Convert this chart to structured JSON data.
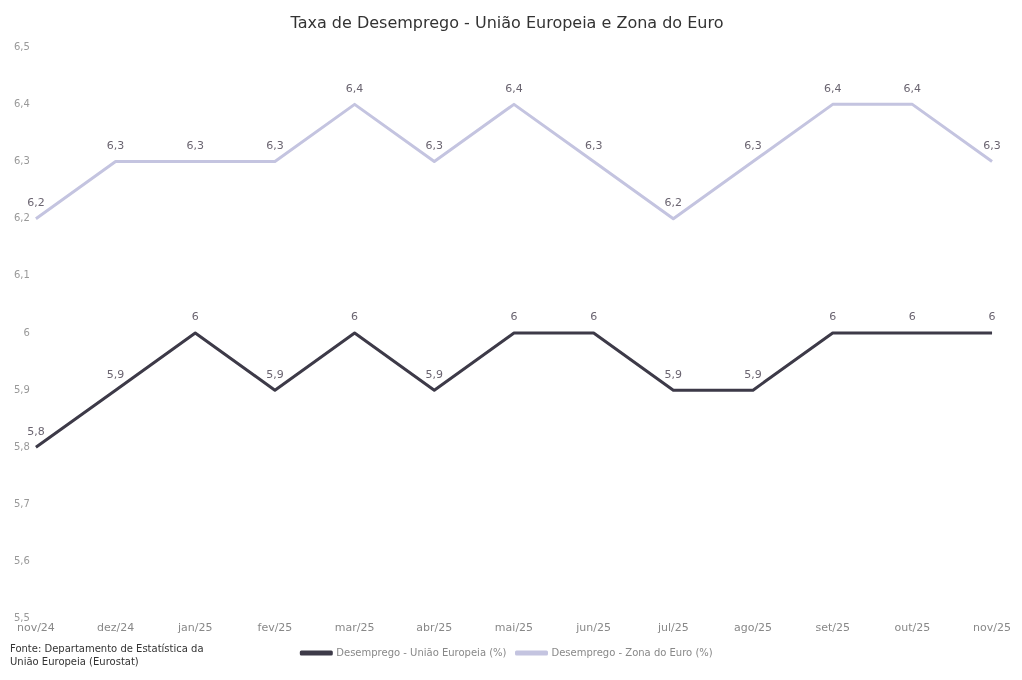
{
  "chart_data": {
    "type": "line",
    "title": "Taxa de Desemprego - União Europeia e Zona do Euro",
    "categories": [
      "nov/24",
      "dez/24",
      "jan/25",
      "fev/25",
      "mar/25",
      "abr/25",
      "mai/25",
      "jun/25",
      "jul/25",
      "ago/25",
      "set/25",
      "out/25",
      "nov/25"
    ],
    "series": [
      {
        "name": "Desemprego - União Europeia (%)",
        "color": "#3d3a48",
        "values": [
          5.8,
          5.9,
          6,
          5.9,
          6,
          5.9,
          6,
          6,
          5.9,
          5.9,
          6,
          6,
          6
        ],
        "value_labels": [
          "5,8",
          "5,9",
          "6",
          "5,9",
          "6",
          "5,9",
          "6",
          "6",
          "5,9",
          "5,9",
          "6",
          "6",
          "6"
        ]
      },
      {
        "name": "Desemprego - Zona do Euro (%)",
        "color": "#c4c4e0",
        "values": [
          6.2,
          6.3,
          6.3,
          6.3,
          6.4,
          6.3,
          6.4,
          6.3,
          6.2,
          6.3,
          6.4,
          6.4,
          6.3
        ],
        "value_labels": [
          "6,2",
          "6,3",
          "6,3",
          "6,3",
          "6,4",
          "6,3",
          "6,4",
          "6,3",
          "6,2",
          "6,3",
          "6,4",
          "6,4",
          "6,3"
        ]
      }
    ],
    "ylim": [
      5.5,
      6.5
    ],
    "yticks": [
      {
        "value": 5.5,
        "label": "5,5"
      },
      {
        "value": 5.6,
        "label": "5,6"
      },
      {
        "value": 5.7,
        "label": "5,7"
      },
      {
        "value": 5.8,
        "label": "5,8"
      },
      {
        "value": 5.9,
        "label": "5,9"
      },
      {
        "value": 6,
        "label": "6"
      },
      {
        "value": 6.1,
        "label": "6,1"
      },
      {
        "value": 6.2,
        "label": "6,2"
      },
      {
        "value": 6.3,
        "label": "6,3"
      },
      {
        "value": 6.4,
        "label": "6,4"
      },
      {
        "value": 6.5,
        "label": "6,5"
      }
    ],
    "grid": false,
    "legend": "bottom",
    "marker": "none",
    "line_style": "solid",
    "annotations": [
      "Fonte: Departamento de Estatística da União Europeia (Eurostat)"
    ]
  }
}
